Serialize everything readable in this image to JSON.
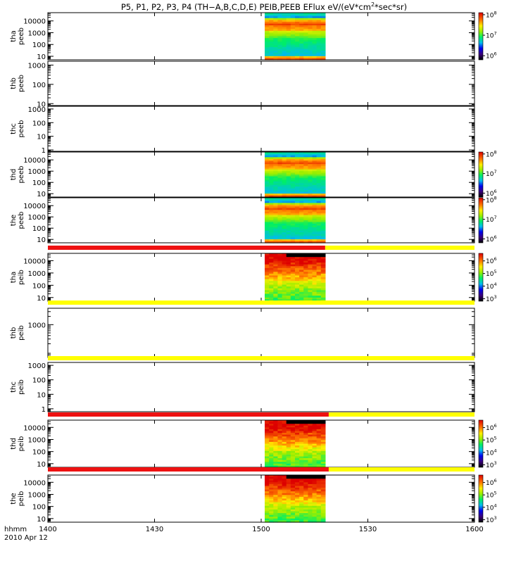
{
  "chart_data": {
    "type": "heatmap",
    "title_parts": [
      "P5, P1, P2, P3, P4 (TH−A,B,C,D,E) PEIB,PEEB EFlux eV/(eV*cm",
      "2",
      "*sec*sr)"
    ],
    "x_axis": {
      "label": "hhmm",
      "date_label": "2010 Apr 12",
      "range": [
        "1400",
        "1600"
      ],
      "ticks": [
        "1400",
        "1430",
        "1500",
        "1530",
        "1600"
      ]
    },
    "data_interval": {
      "start": "1501",
      "end": "1518"
    },
    "panels": [
      {
        "ylabel": [
          "tha",
          "peeb"
        ],
        "yticks": [
          "10",
          "100",
          "1000",
          "10000"
        ],
        "ylog": [
          0.7,
          4.7
        ],
        "has_data": true,
        "kind": "electron",
        "colorbar": {
          "ticks": [
            {
              "b": "10",
              "e": "6",
              "l": 6
            },
            {
              "b": "10",
              "e": "7",
              "l": 7
            },
            {
              "b": "10",
              "e": "8",
              "l": 8
            }
          ],
          "range": [
            5.8,
            8.1
          ]
        }
      },
      {
        "ylabel": [
          "thb",
          "peeb"
        ],
        "yticks": [
          "10",
          "100",
          "1000"
        ],
        "ylog": [
          0.9,
          3.2
        ],
        "has_data": false
      },
      {
        "ylabel": [
          "thc",
          "peeb"
        ],
        "yticks": [
          "1",
          "10",
          "100",
          "1000"
        ],
        "ylog": [
          -0.1,
          3.2
        ],
        "has_data": false
      },
      {
        "ylabel": [
          "thd",
          "peeb"
        ],
        "yticks": [
          "10",
          "100",
          "1000",
          "10000"
        ],
        "ylog": [
          0.7,
          4.7
        ],
        "has_data": true,
        "kind": "electron",
        "colorbar": {
          "ticks": [
            {
              "b": "10",
              "e": "6",
              "l": 6
            },
            {
              "b": "10",
              "e": "7",
              "l": 7
            },
            {
              "b": "10",
              "e": "8",
              "l": 8
            }
          ],
          "range": [
            5.8,
            8.1
          ]
        }
      },
      {
        "ylabel": [
          "the",
          "peeb"
        ],
        "yticks": [
          "10",
          "100",
          "1000",
          "10000"
        ],
        "ylog": [
          0.7,
          4.7
        ],
        "has_data": true,
        "kind": "electron",
        "colorbar": {
          "ticks": [
            {
              "b": "10",
              "e": "6",
              "l": 6
            },
            {
              "b": "10",
              "e": "7",
              "l": 7
            },
            {
              "b": "10",
              "e": "8",
              "l": 8
            }
          ],
          "range": [
            5.8,
            8.1
          ]
        }
      },
      {
        "ylabel": [
          "tha",
          "peib"
        ],
        "yticks": [
          "10",
          "100",
          "1000",
          "10000"
        ],
        "ylog": [
          0.7,
          4.6
        ],
        "has_data": true,
        "kind": "ion",
        "mode_bar": {
          "red_end": "1518"
        },
        "colorbar": {
          "ticks": [
            {
              "b": "10",
              "e": "3",
              "l": 3
            },
            {
              "b": "10",
              "e": "4",
              "l": 4
            },
            {
              "b": "10",
              "e": "5",
              "l": 5
            },
            {
              "b": "10",
              "e": "6",
              "l": 6
            }
          ],
          "range": [
            2.8,
            6.6
          ]
        }
      },
      {
        "ylabel": [
          "thb",
          "peib"
        ],
        "yticks": [
          "1000"
        ],
        "ylog": [
          1.8,
          3.6
        ],
        "has_data": false,
        "mode_bar": {
          "red_end": null
        }
      },
      {
        "ylabel": [
          "thc",
          "peib"
        ],
        "yticks": [
          "1",
          "10",
          "100",
          "1000"
        ],
        "ylog": [
          -0.2,
          3.2
        ],
        "has_data": false,
        "mode_bar": {
          "red_end": null
        }
      },
      {
        "ylabel": [
          "thd",
          "peib"
        ],
        "yticks": [
          "10",
          "100",
          "1000",
          "10000"
        ],
        "ylog": [
          0.7,
          4.6
        ],
        "has_data": true,
        "kind": "ion",
        "mode_bar": {
          "red_end": "1519"
        },
        "colorbar": {
          "ticks": [
            {
              "b": "10",
              "e": "3",
              "l": 3
            },
            {
              "b": "10",
              "e": "4",
              "l": 4
            },
            {
              "b": "10",
              "e": "5",
              "l": 5
            },
            {
              "b": "10",
              "e": "6",
              "l": 6
            }
          ],
          "range": [
            2.8,
            6.6
          ]
        }
      },
      {
        "ylabel": [
          "the",
          "peib"
        ],
        "yticks": [
          "10",
          "100",
          "1000",
          "10000"
        ],
        "ylog": [
          0.7,
          4.6
        ],
        "has_data": true,
        "kind": "ion",
        "mode_bar": {
          "red_end": "1519"
        },
        "colorbar": {
          "ticks": [
            {
              "b": "10",
              "e": "3",
              "l": 3
            },
            {
              "b": "10",
              "e": "4",
              "l": 4
            },
            {
              "b": "10",
              "e": "5",
              "l": 5
            },
            {
              "b": "10",
              "e": "6",
              "l": 6
            }
          ],
          "range": [
            2.8,
            6.6
          ]
        }
      }
    ],
    "mode_bar_colors": {
      "red": "#ee1111",
      "yellow": "#ffff00"
    }
  }
}
